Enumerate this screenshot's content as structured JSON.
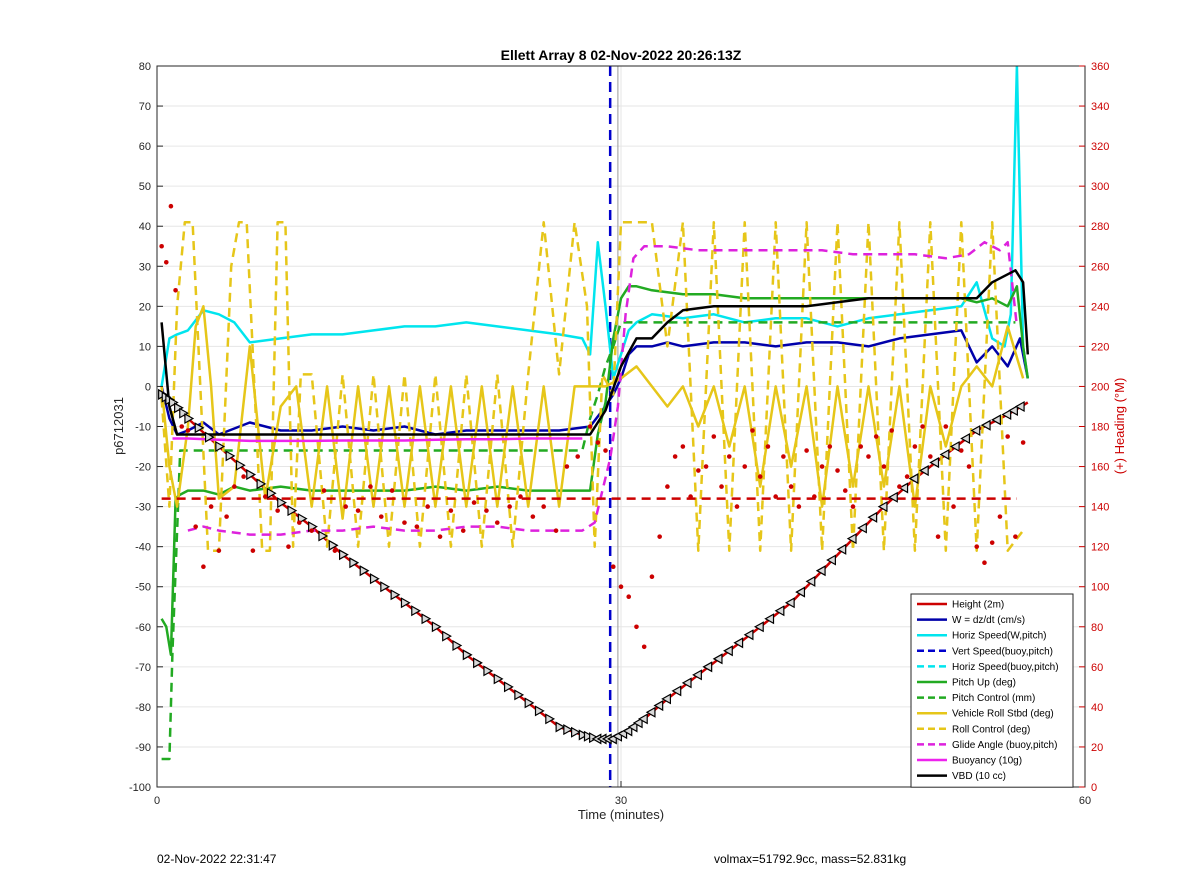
{
  "chart_data": {
    "type": "line",
    "title": "Ellett Array 8 02-Nov-2022 20:26:13Z",
    "xlabel": "Time (minutes)",
    "ylabel": "p6712031",
    "ylabel_right": "(+) Heading (°M)",
    "xlim": [
      0,
      60
    ],
    "ylim": [
      -100,
      80
    ],
    "ylim_right": [
      0,
      360
    ],
    "xticks": [
      0,
      30,
      60
    ],
    "yticks": [
      -100,
      -90,
      -80,
      -70,
      -60,
      -50,
      -40,
      -30,
      -20,
      -10,
      0,
      10,
      20,
      30,
      40,
      50,
      60,
      70,
      80
    ],
    "yticks_right": [
      0,
      20,
      40,
      60,
      80,
      100,
      120,
      140,
      160,
      180,
      200,
      220,
      240,
      260,
      280,
      300,
      320,
      340,
      360
    ],
    "grid": true,
    "legend_position": "bottom-right",
    "vline": {
      "x": 29.8,
      "color": "#999999"
    },
    "vline_dashed": {
      "x": 29.3,
      "color": "#0000cc"
    },
    "series": [
      {
        "name": "Height (2m)",
        "color": "#cc0000",
        "style": "solid",
        "marker": "triangle",
        "x": [
          0.3,
          1.0,
          2.0,
          4.0,
          6.0,
          8.0,
          10.0,
          12.0,
          14.0,
          16.0,
          18.0,
          20.0,
          22.0,
          24.0,
          26.0,
          27.5,
          28.5,
          29.5,
          30.5,
          31.5,
          33.0,
          35.0,
          37.0,
          39.0,
          41.0,
          43.0,
          45.0,
          47.0,
          49.0,
          51.0,
          53.0,
          55.0,
          56.3
        ],
        "y": [
          -2,
          -4,
          -8,
          -15,
          -22,
          -29,
          -35,
          -42,
          -48,
          -54,
          -60,
          -67,
          -73,
          -79,
          -85,
          -87,
          -88,
          -88,
          -86,
          -83,
          -78,
          -72,
          -66,
          -60,
          -54,
          -46,
          -38,
          -30,
          -23,
          -17,
          -11,
          -7,
          -4
        ]
      },
      {
        "name": "W = dz/dt (cm/s)",
        "color": "#0000aa",
        "style": "solid",
        "x": [
          0.3,
          0.8,
          1.3,
          2.0,
          3.0,
          4.0,
          6.0,
          8.0,
          10.0,
          12.0,
          14.0,
          16.0,
          18.0,
          20.0,
          22.0,
          24.0,
          26.0,
          28.0,
          28.8,
          29.5,
          30.0,
          30.5,
          31.0,
          32.0,
          33.0,
          34.0,
          36.0,
          38.0,
          40.0,
          42.0,
          44.0,
          46.0,
          48.0,
          50.0,
          52.0,
          53.0,
          54.0,
          55.0,
          55.8,
          56.0,
          56.3
        ],
        "y": [
          0,
          -8,
          -12,
          -11,
          -9,
          -12,
          -9,
          -11,
          -11,
          -10,
          -11,
          -10,
          -12,
          -11,
          -11,
          -11,
          -11,
          -10,
          -6,
          -2,
          2,
          8,
          10,
          10,
          11,
          10,
          11,
          11,
          10,
          11,
          11,
          10,
          12,
          13,
          14,
          6,
          10,
          5,
          12,
          8,
          2
        ]
      },
      {
        "name": "Horiz Speed(W,pitch)",
        "color": "#00e5ee",
        "style": "solid",
        "x": [
          0.3,
          0.8,
          1.3,
          2.0,
          3.0,
          4.0,
          5.0,
          6.0,
          8.0,
          10.0,
          12.0,
          14.0,
          16.0,
          18.0,
          20.0,
          22.0,
          24.0,
          26.0,
          27.5,
          28.0,
          28.5,
          29.0,
          29.5,
          30.0,
          30.5,
          31.0,
          32.0,
          34.0,
          36.0,
          38.0,
          40.0,
          42.0,
          44.0,
          46.0,
          48.0,
          50.0,
          52.0,
          53.0,
          54.0,
          54.8,
          55.2,
          55.6,
          56.0,
          56.3
        ],
        "y": [
          0,
          12,
          13,
          14,
          19,
          18,
          16,
          11,
          12,
          13,
          13,
          14,
          15,
          15,
          16,
          15,
          14,
          13,
          12,
          8,
          36,
          20,
          2,
          8,
          14,
          16,
          18,
          17,
          18,
          16,
          17,
          17,
          15,
          17,
          18,
          19,
          20,
          26,
          12,
          10,
          18,
          80,
          10,
          2
        ]
      },
      {
        "name": "Vert Speed(buoy,pitch)",
        "color": "#0000cc",
        "style": "dashed",
        "x": [],
        "y": []
      },
      {
        "name": "Horiz Speed(buoy,pitch)",
        "color": "#00e5ee",
        "style": "dashed",
        "x": [],
        "y": []
      },
      {
        "name": "Pitch Up (deg)",
        "color": "#22aa22",
        "style": "solid",
        "x": [
          0.3,
          0.6,
          0.9,
          1.2,
          1.5,
          2.0,
          3.0,
          4.0,
          5.0,
          6.0,
          8.0,
          10.0,
          12.0,
          14.0,
          16.0,
          18.0,
          20.0,
          22.0,
          24.0,
          26.0,
          27.0,
          28.0,
          28.5,
          29.0,
          29.5,
          30.0,
          30.5,
          31.0,
          32.0,
          34.0,
          36.0,
          38.0,
          40.0,
          42.0,
          44.0,
          46.0,
          48.0,
          50.0,
          52.0,
          53.0,
          54.0,
          55.0,
          55.6,
          56.0,
          56.3
        ],
        "y": [
          -58,
          -60,
          -67,
          -28,
          -27,
          -26,
          -26,
          -27,
          -25,
          -26,
          -25,
          -26,
          -26,
          -26,
          -26,
          -25,
          -26,
          -25,
          -26,
          -26,
          -26,
          -26,
          -12,
          -4,
          12,
          22,
          25,
          25,
          24,
          23,
          23,
          22,
          22,
          22,
          22,
          22,
          22,
          22,
          22,
          21,
          22,
          20,
          25,
          10,
          2
        ]
      },
      {
        "name": "Pitch Control (mm)",
        "color": "#22aa22",
        "style": "dashed",
        "x": [
          0.3,
          0.8,
          1.0,
          1.5,
          2.0,
          4.0,
          6.0,
          8.0,
          10.0,
          12.0,
          14.0,
          16.0,
          18.0,
          20.0,
          22.0,
          24.0,
          26.0,
          27.5,
          28.0,
          28.5,
          29.0,
          29.5,
          30.0,
          31.0,
          32.0,
          34.0,
          36.0,
          38.0,
          40.0,
          42.0,
          44.0,
          46.0,
          48.0,
          50.0,
          52.0,
          54.0,
          55.0,
          55.5
        ],
        "y": [
          -93,
          -93,
          -66,
          -16,
          -16,
          -16,
          -16,
          -16,
          -16,
          -16,
          -16,
          -16,
          -16,
          -16,
          -16,
          -16,
          -16,
          -16,
          -8,
          -2,
          5,
          10,
          16,
          16,
          16,
          16,
          16,
          16,
          16,
          16,
          16,
          16,
          16,
          16,
          16,
          16,
          16,
          16
        ]
      },
      {
        "name": "Vehicle Roll Stbd (deg)",
        "color": "#e6c619",
        "style": "solid",
        "x": [
          0.3,
          0.8,
          1.3,
          2.0,
          2.5,
          3.0,
          3.5,
          4.0,
          5.0,
          6.0,
          7.0,
          8.0,
          9.0,
          10.0,
          11.0,
          12.0,
          13.0,
          14.0,
          15.0,
          16.0,
          17.0,
          18.0,
          19.0,
          20.0,
          21.0,
          22.0,
          23.0,
          24.0,
          25.0,
          26.0,
          27.0,
          28.0,
          29.0,
          30.0,
          31.0,
          32.0,
          33.0,
          34.0,
          35.0,
          36.0,
          37.0,
          38.0,
          39.0,
          40.0,
          41.0,
          42.0,
          43.0,
          44.0,
          45.0,
          46.0,
          47.0,
          48.0,
          49.0,
          50.0,
          51.0,
          52.0,
          53.0,
          54.0,
          55.0,
          56.0
        ],
        "y": [
          0,
          -20,
          -30,
          -10,
          15,
          20,
          0,
          -28,
          -25,
          10,
          -28,
          -5,
          0,
          -30,
          0,
          -33,
          0,
          -30,
          0,
          -30,
          0,
          -30,
          0,
          -30,
          0,
          -30,
          0,
          -30,
          0,
          -30,
          0,
          0,
          0,
          2,
          5,
          0,
          -5,
          0,
          -10,
          0,
          -15,
          0,
          -25,
          0,
          -20,
          0,
          -30,
          0,
          -25,
          0,
          -25,
          0,
          -30,
          0,
          -15,
          0,
          5,
          0,
          15,
          2
        ]
      },
      {
        "name": "Roll Control (deg)",
        "color": "#e6c619",
        "style": "dashed",
        "x": [
          0.3,
          0.8,
          1.3,
          1.8,
          2.3,
          2.8,
          3.3,
          4.0,
          4.8,
          5.3,
          5.8,
          6.3,
          6.8,
          7.3,
          7.8,
          8.3,
          8.8,
          9.3,
          10.0,
          11.0,
          12.0,
          13.0,
          14.0,
          15.0,
          16.0,
          17.0,
          18.0,
          19.0,
          20.0,
          21.0,
          22.0,
          23.0,
          24.0,
          25.0,
          26.0,
          27.0,
          27.8,
          28.3,
          28.8,
          29.5,
          30.0,
          31.0,
          32.0,
          33.0,
          34.0,
          35.0,
          36.0,
          37.0,
          38.0,
          39.0,
          40.0,
          41.0,
          42.0,
          43.0,
          44.0,
          45.0,
          46.0,
          47.0,
          48.0,
          49.0,
          50.0,
          51.0,
          52.0,
          53.0,
          54.0,
          55.0,
          56.0
        ],
        "y": [
          -3,
          -30,
          20,
          41,
          41,
          0,
          -41,
          -41,
          30,
          41,
          41,
          0,
          -41,
          -41,
          41,
          41,
          -40,
          3,
          3,
          -40,
          3,
          -40,
          3,
          -40,
          3,
          -40,
          3,
          -40,
          3,
          -40,
          3,
          -40,
          3,
          41,
          3,
          41,
          20,
          -40,
          3,
          -2,
          41,
          41,
          41,
          10,
          41,
          -41,
          41,
          -41,
          41,
          -41,
          41,
          -41,
          41,
          -41,
          41,
          -41,
          41,
          -41,
          41,
          -41,
          41,
          -41,
          41,
          -41,
          41,
          -41,
          -36
        ]
      },
      {
        "name": "Glide Angle (buoy,pitch)",
        "color": "#dd22dd",
        "style": "dashed",
        "x": [
          2.0,
          3.0,
          4.0,
          6.0,
          8.0,
          10.0,
          12.0,
          14.0,
          16.0,
          18.0,
          20.0,
          22.0,
          24.0,
          26.0,
          27.5,
          28.3,
          28.8,
          29.3,
          29.8,
          30.3,
          30.8,
          31.5,
          33.0,
          35.0,
          37.0,
          39.0,
          41.0,
          43.0,
          45.0,
          47.0,
          49.0,
          51.0,
          52.5,
          53.5,
          54.5,
          55.0,
          55.6
        ],
        "y": [
          -36,
          -35,
          -36,
          -37,
          -37,
          -36,
          -36,
          -35,
          -36,
          -36,
          -35,
          -35,
          -36,
          -36,
          -36,
          -34,
          -26,
          -18,
          -5,
          18,
          32,
          35,
          35,
          34,
          34,
          34,
          34,
          34,
          33,
          33,
          33,
          32,
          33,
          36,
          34,
          36,
          15
        ]
      },
      {
        "name": "Buoyancy (10g)",
        "color": "#ee22ee",
        "style": "solid",
        "x": [
          1.0,
          2.0,
          4.0,
          6.0,
          8.0,
          10.0,
          12.0,
          14.0,
          16.0,
          18.0,
          20.0,
          22.0,
          24.0,
          26.0,
          27.5
        ],
        "y": [
          -13,
          -13,
          -13.3,
          -13.6,
          -13.6,
          -13.6,
          -13.5,
          -13.5,
          -13.5,
          -13.3,
          -13.2,
          -13.2,
          -13.0,
          -13.0,
          -13.0
        ]
      },
      {
        "name": "VBD (10 cc)",
        "color": "#000000",
        "style": "solid",
        "x": [
          0.3,
          0.8,
          1.3,
          2.0,
          4.0,
          6.0,
          8.0,
          10.0,
          12.0,
          14.0,
          16.0,
          18.0,
          20.0,
          22.0,
          24.0,
          26.0,
          28.0,
          29.0,
          30.0,
          31.0,
          32.0,
          33.0,
          34.0,
          36.0,
          38.0,
          40.0,
          42.0,
          44.0,
          46.0,
          48.0,
          50.0,
          52.0,
          53.0,
          54.0,
          55.0,
          55.5,
          56.0,
          56.3
        ],
        "y": [
          16,
          -5,
          -12,
          -12,
          -12,
          -12,
          -12,
          -12,
          -12,
          -12,
          -12,
          -12,
          -12,
          -12,
          -12,
          -12,
          -12,
          -6,
          5,
          12,
          12,
          16,
          19,
          20,
          20,
          20,
          20,
          21,
          22,
          22,
          22,
          22,
          22,
          26,
          28,
          29,
          26,
          8
        ]
      },
      {
        "name": "Heading",
        "axis": "right",
        "color": "#cc0000",
        "style": "dots",
        "x": [
          0.3,
          0.6,
          0.9,
          1.2,
          1.6,
          2.0,
          2.5,
          3.0,
          3.5,
          4.0,
          4.5,
          5.0,
          5.6,
          6.2,
          7.0,
          7.8,
          8.5,
          9.2,
          10.0,
          10.8,
          11.5,
          12.2,
          13.0,
          13.8,
          14.5,
          15.2,
          16.0,
          16.8,
          17.5,
          18.3,
          19.0,
          19.8,
          20.5,
          21.3,
          22.0,
          22.8,
          23.5,
          24.3,
          25.0,
          25.8,
          26.5,
          27.2,
          28.0,
          28.5,
          29.0,
          29.5,
          30.0,
          30.5,
          31.0,
          31.5,
          32.0,
          32.5,
          33.0,
          33.5,
          34.0,
          34.5,
          35.0,
          35.5,
          36.0,
          36.5,
          37.0,
          37.5,
          38.0,
          38.5,
          39.0,
          39.5,
          40.0,
          40.5,
          41.0,
          41.5,
          42.0,
          42.5,
          43.0,
          43.5,
          44.0,
          44.5,
          45.0,
          45.5,
          46.0,
          46.5,
          47.0,
          47.5,
          48.0,
          48.5,
          49.0,
          49.5,
          50.0,
          50.5,
          51.0,
          51.5,
          52.0,
          52.5,
          53.0,
          53.5,
          54.0,
          54.5,
          55.0,
          55.5,
          56.0
        ],
        "y": [
          270,
          262,
          290,
          248,
          180,
          178,
          130,
          110,
          140,
          118,
          135,
          150,
          155,
          118,
          145,
          138,
          120,
          132,
          128,
          148,
          118,
          140,
          138,
          150,
          135,
          148,
          132,
          130,
          140,
          125,
          138,
          128,
          142,
          138,
          132,
          140,
          145,
          135,
          140,
          128,
          160,
          165,
          180,
          172,
          168,
          110,
          100,
          95,
          80,
          70,
          105,
          125,
          150,
          165,
          170,
          145,
          158,
          160,
          175,
          150,
          165,
          140,
          160,
          178,
          155,
          170,
          145,
          165,
          150,
          140,
          168,
          145,
          160,
          170,
          158,
          148,
          140,
          170,
          165,
          175,
          160,
          178,
          150,
          155,
          170,
          180,
          165,
          125,
          180,
          140,
          168,
          160,
          120,
          112,
          122,
          135,
          175,
          125,
          172
        ]
      }
    ]
  },
  "footer": {
    "left": "02-Nov-2022 22:31:47",
    "right": "volmax=51792.9cc, mass=52.831kg"
  }
}
